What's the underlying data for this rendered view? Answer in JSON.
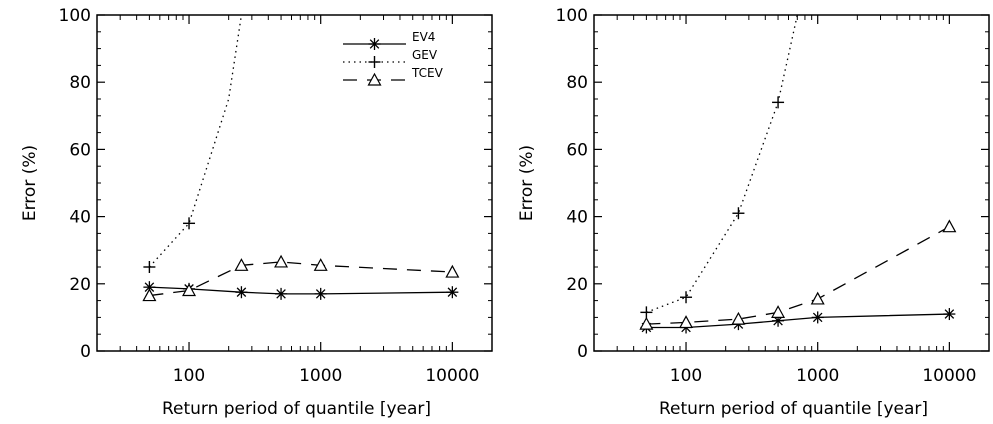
{
  "chart_data": [
    {
      "type": "line",
      "xscale": "log",
      "xlabel": "Return period of quantile [year]",
      "ylabel": "Error (%)",
      "xticks": [
        100,
        1000,
        10000
      ],
      "xtick_labels": [
        "100",
        "1000",
        "10000"
      ],
      "yticks": [
        0,
        20,
        40,
        60,
        80,
        100
      ],
      "ytick_labels": [
        "0",
        "20",
        "40",
        "60",
        "80",
        "100"
      ],
      "xlim": [
        20,
        20000
      ],
      "ylim": [
        0,
        100
      ],
      "legend": {
        "placement": "top-right"
      },
      "series": [
        {
          "name": "EV4",
          "style": "solid",
          "marker": "asterisk",
          "x": [
            50,
            100,
            250,
            500,
            1000,
            10000
          ],
          "y": [
            19,
            18.5,
            17.5,
            17,
            17,
            17.5
          ]
        },
        {
          "name": "GEV",
          "style": "dotted",
          "marker": "plus",
          "x": [
            50,
            100,
            200,
            250
          ],
          "y": [
            25,
            38,
            75,
            100
          ],
          "marked_points": 2
        },
        {
          "name": "TCEV",
          "style": "dashed",
          "marker": "triangle",
          "x": [
            50,
            100,
            250,
            500,
            1000,
            10000
          ],
          "y": [
            16.5,
            18,
            25.5,
            26.5,
            25.5,
            23.5
          ]
        }
      ]
    },
    {
      "type": "line",
      "xscale": "log",
      "xlabel": "Return period of quantile [year]",
      "ylabel": "Error (%)",
      "xticks": [
        100,
        1000,
        10000
      ],
      "xtick_labels": [
        "100",
        "1000",
        "10000"
      ],
      "yticks": [
        0,
        20,
        40,
        60,
        80,
        100
      ],
      "ytick_labels": [
        "0",
        "20",
        "40",
        "60",
        "80",
        "100"
      ],
      "xlim": [
        20,
        20000
      ],
      "ylim": [
        0,
        100
      ],
      "series": [
        {
          "name": "EV4",
          "style": "solid",
          "marker": "asterisk",
          "x": [
            50,
            100,
            250,
            500,
            1000,
            10000
          ],
          "y": [
            7,
            7,
            8,
            9,
            10,
            11
          ]
        },
        {
          "name": "GEV",
          "style": "dotted",
          "marker": "plus",
          "x": [
            50,
            100,
            250,
            500,
            700
          ],
          "y": [
            11.5,
            16,
            41,
            74,
            100
          ],
          "marked_points": 4
        },
        {
          "name": "TCEV",
          "style": "dashed",
          "marker": "triangle",
          "x": [
            50,
            100,
            250,
            500,
            1000,
            10000
          ],
          "y": [
            8,
            8.5,
            9.5,
            11.5,
            15.5,
            37
          ]
        }
      ]
    }
  ]
}
